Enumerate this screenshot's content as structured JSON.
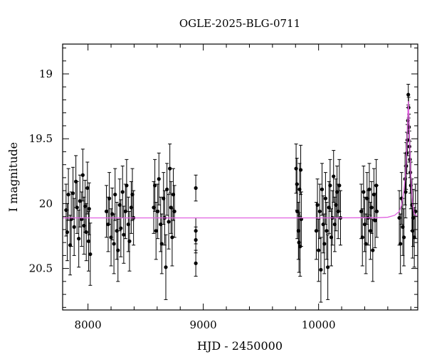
{
  "chart_data": {
    "type": "scatter",
    "title": "OGLE-2025-BLG-0711",
    "xlabel": "HJD - 2450000",
    "ylabel": "I magnitude",
    "xlim": [
      7780,
      10860
    ],
    "ylim": [
      20.82,
      18.77
    ],
    "y_inverted": true,
    "x_ticks": [
      8000,
      9000,
      10000
    ],
    "y_ticks": [
      19,
      19.5,
      20,
      20.5
    ],
    "grid": false,
    "colors": {
      "points": "#000000",
      "model": "#e060e0"
    },
    "series": [
      {
        "marker": "filled-circle-with-errorbars",
        "points": [
          {
            "x": 7810,
            "y": 20.05,
            "err": 0.2
          },
          {
            "x": 7820,
            "y": 20.22,
            "err": 0.22
          },
          {
            "x": 7830,
            "y": 19.93,
            "err": 0.2
          },
          {
            "x": 7845,
            "y": 20.32,
            "err": 0.23
          },
          {
            "x": 7855,
            "y": 20.12,
            "err": 0.21
          },
          {
            "x": 7870,
            "y": 19.92,
            "err": 0.2
          },
          {
            "x": 7880,
            "y": 20.18,
            "err": 0.22
          },
          {
            "x": 7895,
            "y": 19.83,
            "err": 0.2
          },
          {
            "x": 7905,
            "y": 20.03,
            "err": 0.2
          },
          {
            "x": 7920,
            "y": 20.27,
            "err": 0.22
          },
          {
            "x": 7930,
            "y": 19.98,
            "err": 0.2
          },
          {
            "x": 7945,
            "y": 20.12,
            "err": 0.21
          },
          {
            "x": 7955,
            "y": 19.78,
            "err": 0.2
          },
          {
            "x": 7965,
            "y": 20.17,
            "err": 0.22
          },
          {
            "x": 7975,
            "y": 20.02,
            "err": 0.2
          },
          {
            "x": 7985,
            "y": 20.22,
            "err": 0.22
          },
          {
            "x": 7995,
            "y": 19.88,
            "err": 0.2
          },
          {
            "x": 8005,
            "y": 20.29,
            "err": 0.23
          },
          {
            "x": 8020,
            "y": 20.39,
            "err": 0.24
          },
          {
            "x": 8010,
            "y": 20.04,
            "err": 0.2
          },
          {
            "x": 8160,
            "y": 20.06,
            "err": 0.2
          },
          {
            "x": 8175,
            "y": 20.16,
            "err": 0.21
          },
          {
            "x": 8185,
            "y": 19.96,
            "err": 0.2
          },
          {
            "x": 8200,
            "y": 20.26,
            "err": 0.22
          },
          {
            "x": 8210,
            "y": 20.08,
            "err": 0.2
          },
          {
            "x": 8225,
            "y": 20.31,
            "err": 0.23
          },
          {
            "x": 8235,
            "y": 19.93,
            "err": 0.2
          },
          {
            "x": 8250,
            "y": 20.21,
            "err": 0.22
          },
          {
            "x": 8260,
            "y": 20.36,
            "err": 0.24
          },
          {
            "x": 8275,
            "y": 20.01,
            "err": 0.2
          },
          {
            "x": 8285,
            "y": 20.19,
            "err": 0.22
          },
          {
            "x": 8300,
            "y": 19.91,
            "err": 0.2
          },
          {
            "x": 8310,
            "y": 20.24,
            "err": 0.22
          },
          {
            "x": 8325,
            "y": 20.06,
            "err": 0.21
          },
          {
            "x": 8335,
            "y": 19.86,
            "err": 0.2
          },
          {
            "x": 8350,
            "y": 20.16,
            "err": 0.21
          },
          {
            "x": 8360,
            "y": 20.29,
            "err": 0.23
          },
          {
            "x": 8375,
            "y": 20.03,
            "err": 0.2
          },
          {
            "x": 8385,
            "y": 19.93,
            "err": 0.2
          },
          {
            "x": 8395,
            "y": 20.11,
            "err": 0.21
          },
          {
            "x": 8570,
            "y": 20.03,
            "err": 0.2
          },
          {
            "x": 8580,
            "y": 19.86,
            "err": 0.2
          },
          {
            "x": 8590,
            "y": 20.21,
            "err": 0.22
          },
          {
            "x": 8605,
            "y": 20.06,
            "err": 0.21
          },
          {
            "x": 8615,
            "y": 19.81,
            "err": 0.2
          },
          {
            "x": 8630,
            "y": 20.16,
            "err": 0.21
          },
          {
            "x": 8640,
            "y": 20.31,
            "err": 0.23
          },
          {
            "x": 8655,
            "y": 19.96,
            "err": 0.2
          },
          {
            "x": 8665,
            "y": 20.11,
            "err": 0.21
          },
          {
            "x": 8675,
            "y": 20.49,
            "err": 0.25
          },
          {
            "x": 8685,
            "y": 19.89,
            "err": 0.2
          },
          {
            "x": 8700,
            "y": 20.14,
            "err": 0.21
          },
          {
            "x": 8710,
            "y": 19.73,
            "err": 0.19
          },
          {
            "x": 8720,
            "y": 20.03,
            "err": 0.2
          },
          {
            "x": 8730,
            "y": 20.26,
            "err": 0.22
          },
          {
            "x": 8740,
            "y": 19.93,
            "err": 0.2
          },
          {
            "x": 8750,
            "y": 20.06,
            "err": 0.2
          },
          {
            "x": 8935,
            "y": 19.88,
            "err": 0.1
          },
          {
            "x": 8935,
            "y": 20.21,
            "err": 0.1
          },
          {
            "x": 8935,
            "y": 20.46,
            "err": 0.1
          },
          {
            "x": 8935,
            "y": 20.28,
            "err": 0.1
          },
          {
            "x": 9805,
            "y": 19.73,
            "err": 0.19
          },
          {
            "x": 9815,
            "y": 20.06,
            "err": 0.21
          },
          {
            "x": 9825,
            "y": 20.21,
            "err": 0.22
          },
          {
            "x": 9835,
            "y": 19.89,
            "err": 0.2
          },
          {
            "x": 9840,
            "y": 20.33,
            "err": 0.23
          },
          {
            "x": 9850,
            "y": 20.12,
            "err": 0.21
          },
          {
            "x": 9845,
            "y": 19.74,
            "err": 0.19
          },
          {
            "x": 9830,
            "y": 20.3,
            "err": 0.23
          },
          {
            "x": 9812,
            "y": 19.85,
            "err": 0.2
          },
          {
            "x": 9980,
            "y": 20.21,
            "err": 0.22
          },
          {
            "x": 9990,
            "y": 20.01,
            "err": 0.2
          },
          {
            "x": 10000,
            "y": 20.36,
            "err": 0.24
          },
          {
            "x": 10010,
            "y": 20.06,
            "err": 0.21
          },
          {
            "x": 10020,
            "y": 20.51,
            "err": 0.25
          },
          {
            "x": 10030,
            "y": 19.89,
            "err": 0.2
          },
          {
            "x": 10040,
            "y": 20.16,
            "err": 0.22
          },
          {
            "x": 10050,
            "y": 20.31,
            "err": 0.23
          },
          {
            "x": 10060,
            "y": 19.96,
            "err": 0.2
          },
          {
            "x": 10070,
            "y": 20.21,
            "err": 0.22
          },
          {
            "x": 10080,
            "y": 20.49,
            "err": 0.25
          },
          {
            "x": 10090,
            "y": 20.03,
            "err": 0.2
          },
          {
            "x": 10100,
            "y": 19.86,
            "err": 0.2
          },
          {
            "x": 10110,
            "y": 20.26,
            "err": 0.22
          },
          {
            "x": 10120,
            "y": 20.11,
            "err": 0.21
          },
          {
            "x": 10130,
            "y": 19.79,
            "err": 0.2
          },
          {
            "x": 10140,
            "y": 20.16,
            "err": 0.21
          },
          {
            "x": 10150,
            "y": 20.01,
            "err": 0.2
          },
          {
            "x": 10160,
            "y": 19.91,
            "err": 0.2
          },
          {
            "x": 10170,
            "y": 20.06,
            "err": 0.21
          },
          {
            "x": 10180,
            "y": 19.86,
            "err": 0.2
          },
          {
            "x": 10190,
            "y": 20.11,
            "err": 0.21
          },
          {
            "x": 10370,
            "y": 20.06,
            "err": 0.21
          },
          {
            "x": 10380,
            "y": 20.26,
            "err": 0.22
          },
          {
            "x": 10390,
            "y": 19.91,
            "err": 0.2
          },
          {
            "x": 10400,
            "y": 20.16,
            "err": 0.21
          },
          {
            "x": 10410,
            "y": 20.31,
            "err": 0.23
          },
          {
            "x": 10420,
            "y": 19.96,
            "err": 0.2
          },
          {
            "x": 10430,
            "y": 20.11,
            "err": 0.21
          },
          {
            "x": 10440,
            "y": 19.89,
            "err": 0.2
          },
          {
            "x": 10450,
            "y": 20.21,
            "err": 0.22
          },
          {
            "x": 10460,
            "y": 20.03,
            "err": 0.2
          },
          {
            "x": 10470,
            "y": 20.36,
            "err": 0.24
          },
          {
            "x": 10480,
            "y": 19.93,
            "err": 0.2
          },
          {
            "x": 10490,
            "y": 20.13,
            "err": 0.21
          },
          {
            "x": 10500,
            "y": 19.86,
            "err": 0.2
          },
          {
            "x": 10505,
            "y": 20.06,
            "err": 0.2
          },
          {
            "x": 10700,
            "y": 20.11,
            "err": 0.21
          },
          {
            "x": 10710,
            "y": 20.31,
            "err": 0.23
          },
          {
            "x": 10720,
            "y": 19.96,
            "err": 0.2
          },
          {
            "x": 10730,
            "y": 20.18,
            "err": 0.22
          },
          {
            "x": 10740,
            "y": 20.26,
            "err": 0.22
          },
          {
            "x": 10750,
            "y": 19.81,
            "err": 0.2
          },
          {
            "x": 10755,
            "y": 19.91,
            "err": 0.2
          },
          {
            "x": 10760,
            "y": 19.71,
            "err": 0.18
          },
          {
            "x": 10765,
            "y": 19.61,
            "err": 0.16
          },
          {
            "x": 10770,
            "y": 19.51,
            "err": 0.12
          },
          {
            "x": 10775,
            "y": 19.36,
            "err": 0.1
          },
          {
            "x": 10778,
            "y": 19.16,
            "err": 0.08
          },
          {
            "x": 10781,
            "y": 19.26,
            "err": 0.08
          },
          {
            "x": 10784,
            "y": 19.41,
            "err": 0.1
          },
          {
            "x": 10788,
            "y": 19.56,
            "err": 0.12
          },
          {
            "x": 10792,
            "y": 19.66,
            "err": 0.14
          },
          {
            "x": 10796,
            "y": 19.76,
            "err": 0.16
          },
          {
            "x": 10800,
            "y": 19.86,
            "err": 0.18
          },
          {
            "x": 10810,
            "y": 20.01,
            "err": 0.2
          },
          {
            "x": 10815,
            "y": 20.21,
            "err": 0.21
          },
          {
            "x": 10820,
            "y": 20.11,
            "err": 0.22
          },
          {
            "x": 10830,
            "y": 20.26,
            "err": 0.23
          },
          {
            "x": 10840,
            "y": 20.06,
            "err": 0.21
          }
        ]
      },
      {
        "style": "line",
        "color": "#e060e0",
        "x": [
          7780,
          9000,
          10000,
          10500,
          10600,
          10660,
          10700,
          10720,
          10740,
          10755,
          10765,
          10772,
          10778,
          10784,
          10790,
          10800,
          10815,
          10830,
          10860
        ],
        "y": [
          20.11,
          20.11,
          20.11,
          20.109,
          20.105,
          20.09,
          20.06,
          20.01,
          19.9,
          19.76,
          19.56,
          19.36,
          19.21,
          19.33,
          19.53,
          19.79,
          20.0,
          20.08,
          20.1
        ]
      }
    ]
  }
}
